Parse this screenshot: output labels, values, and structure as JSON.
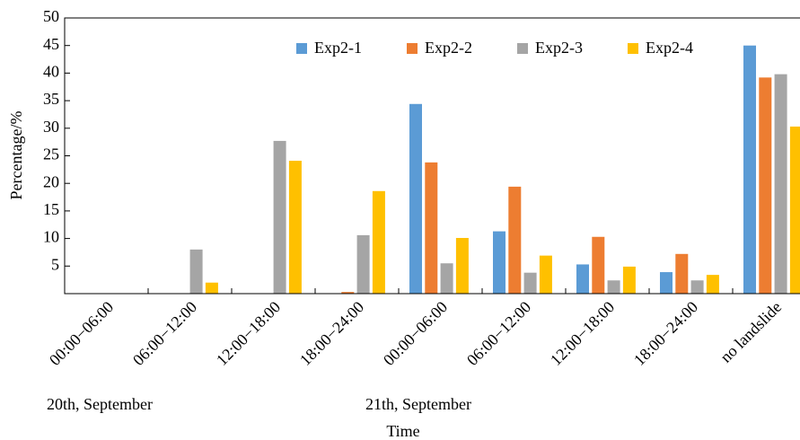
{
  "chart_data": {
    "type": "bar",
    "categories": [
      "00:00−06:00",
      "06:00−12:00",
      "12:00−18:00",
      "18:00−24:00",
      "00:00−06:00",
      "06:00−12:00",
      "12:00−18:00",
      "18:00−24:00",
      "no landslide"
    ],
    "category_groups": [
      "20th, September",
      "21th, September"
    ],
    "xlabel": "Time",
    "ylabel": "Percentage/%",
    "series": [
      {
        "name": "Exp2-1",
        "color": "#5b9bd5",
        "values": [
          0,
          0,
          0,
          0,
          34.4,
          11.3,
          5.3,
          3.9,
          45
        ]
      },
      {
        "name": "Exp2-2",
        "color": "#ed7d31",
        "values": [
          0,
          0,
          0,
          0.3,
          23.8,
          19.4,
          10.3,
          7.2,
          39.2
        ]
      },
      {
        "name": "Exp2-3",
        "color": "#a5a5a5",
        "values": [
          0,
          8,
          27.7,
          10.6,
          5.5,
          3.8,
          2.4,
          2.4,
          39.8
        ]
      },
      {
        "name": "Exp2-4",
        "color": "#ffc000",
        "values": [
          0,
          2,
          24.1,
          18.6,
          10.1,
          6.9,
          4.9,
          3.4,
          30.3
        ]
      }
    ],
    "ylim": [
      0,
      50
    ],
    "yticks": [
      5,
      10,
      15,
      20,
      25,
      30,
      35,
      40,
      45,
      50
    ],
    "legend": "top"
  }
}
